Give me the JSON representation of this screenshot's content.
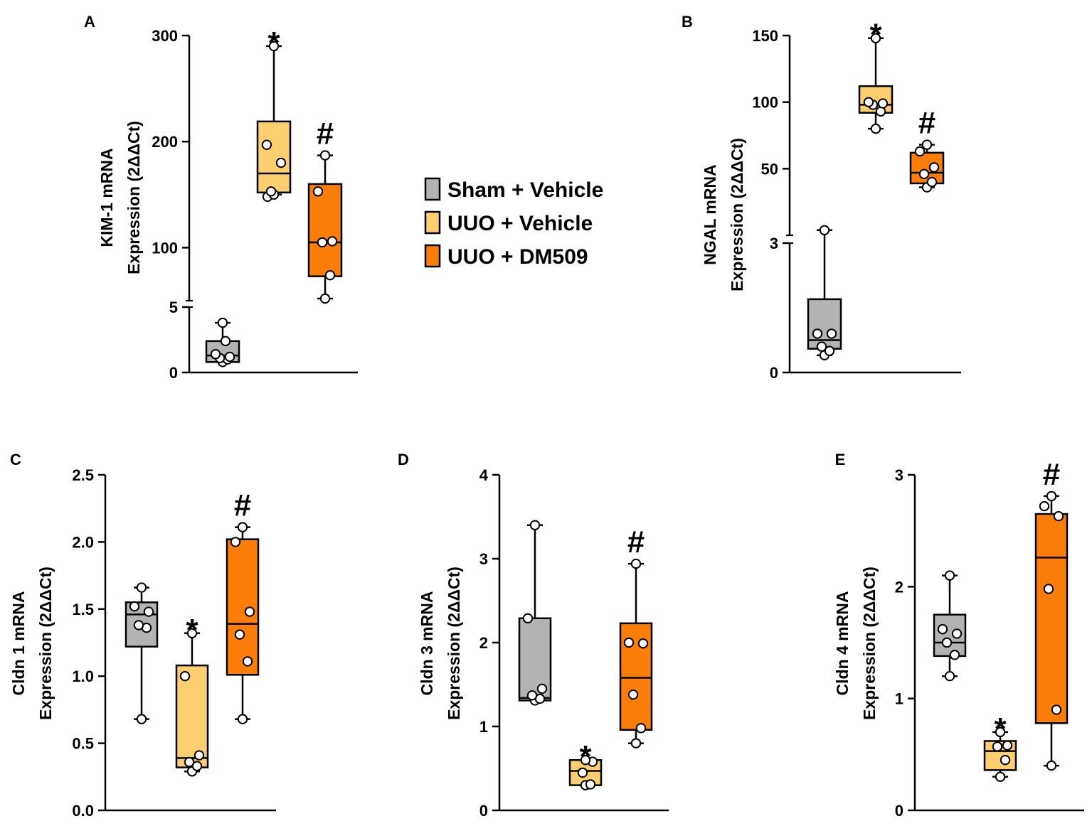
{
  "chart_data": [
    {
      "panel": "A",
      "type": "box",
      "ylabel": [
        "KIM-1 mRNA",
        "Expression (2ΔΔCt)"
      ],
      "yaxis": {
        "broken": true,
        "lower": {
          "range": [
            0,
            5
          ],
          "ticks": [
            "0",
            "5"
          ]
        },
        "upper": {
          "range": [
            50,
            300
          ],
          "ticks": [
            "100",
            "200",
            "300"
          ]
        }
      },
      "groups": [
        {
          "name": "Sham + Vehicle",
          "segment": "lower",
          "whisker": [
            0.8,
            3.8
          ],
          "q1": 0.8,
          "median": 1.3,
          "q3": 2.4,
          "points": [
            0.8,
            1.0,
            1.1,
            1.2,
            1.4,
            2.4,
            3.8
          ],
          "sig": ""
        },
        {
          "name": "UUO + Vehicle",
          "segment": "upper",
          "whisker": [
            150,
            290
          ],
          "q1": 152,
          "median": 170,
          "q3": 219,
          "points": [
            148,
            150,
            153,
            180,
            197,
            290
          ],
          "sig": "*"
        },
        {
          "name": "UUO + DM509",
          "segment": "upper",
          "whisker": [
            52,
            187
          ],
          "q1": 73,
          "median": 105,
          "q3": 160,
          "points": [
            52,
            74,
            105,
            106,
            153,
            187
          ],
          "sig": "#"
        }
      ]
    },
    {
      "panel": "B",
      "type": "box",
      "ylabel": [
        "NGAL mRNA",
        "Expression (2ΔΔCt)"
      ],
      "yaxis": {
        "broken": true,
        "lower": {
          "range": [
            0,
            3
          ],
          "ticks": [
            "0",
            "3"
          ]
        },
        "upper": {
          "range": [
            0,
            150
          ],
          "ticks": [
            "50",
            "100",
            "150"
          ]
        }
      },
      "groups": [
        {
          "name": "Sham + Vehicle",
          "segment": "lower",
          "whisker": [
            0.4,
            3.3
          ],
          "q1": 0.55,
          "median": 0.75,
          "q3": 1.7,
          "points": [
            0.4,
            0.5,
            0.6,
            0.9,
            0.9,
            3.3
          ],
          "sig": ""
        },
        {
          "name": "UUO + Vehicle",
          "segment": "upper",
          "whisker": [
            80,
            148
          ],
          "q1": 92,
          "median": 98,
          "q3": 112,
          "points": [
            80,
            93,
            98,
            99,
            100,
            148
          ],
          "sig": "*"
        },
        {
          "name": "UUO + DM509",
          "segment": "upper",
          "whisker": [
            36,
            68
          ],
          "q1": 39,
          "median": 47,
          "q3": 62,
          "points": [
            36,
            40,
            46,
            51,
            63,
            68
          ],
          "sig": "#"
        }
      ]
    },
    {
      "panel": "C",
      "type": "box",
      "ylabel": [
        "Cldn 1 mRNA",
        "Expression (2ΔΔCt)"
      ],
      "ylim": [
        0,
        2.5
      ],
      "yticks": [
        "0.0",
        "0.5",
        "1.0",
        "1.5",
        "2.0",
        "2.5"
      ],
      "groups": [
        {
          "name": "Sham + Vehicle",
          "whisker": [
            0.68,
            1.66
          ],
          "q1": 1.22,
          "median": 1.46,
          "q3": 1.55,
          "points": [
            0.68,
            1.36,
            1.38,
            1.48,
            1.52,
            1.66
          ],
          "sig": ""
        },
        {
          "name": "UUO + Vehicle",
          "whisker": [
            0.29,
            1.32
          ],
          "q1": 0.32,
          "median": 0.39,
          "q3": 1.08,
          "points": [
            0.29,
            0.33,
            0.36,
            0.41,
            1.0,
            1.32
          ],
          "sig": "*"
        },
        {
          "name": "UUO + DM509",
          "whisker": [
            0.68,
            2.11
          ],
          "q1": 1.01,
          "median": 1.39,
          "q3": 2.02,
          "points": [
            0.68,
            1.11,
            1.31,
            1.48,
            2.0,
            2.11
          ],
          "sig": "#"
        }
      ]
    },
    {
      "panel": "D",
      "type": "box",
      "ylabel": [
        "Cldn 3 mRNA",
        "Expression (2ΔΔCt)"
      ],
      "ylim": [
        0,
        4
      ],
      "yticks": [
        "0",
        "1",
        "2",
        "3",
        "4"
      ],
      "groups": [
        {
          "name": "Sham + Vehicle",
          "whisker": [
            1.31,
            3.4
          ],
          "q1": 1.31,
          "median": 1.34,
          "q3": 2.29,
          "points": [
            1.31,
            1.33,
            1.37,
            1.45,
            2.29,
            3.4
          ],
          "sig": ""
        },
        {
          "name": "UUO + Vehicle",
          "whisker": [
            0.3,
            0.6
          ],
          "q1": 0.3,
          "median": 0.47,
          "q3": 0.6,
          "points": [
            0.3,
            0.31,
            0.45,
            0.58,
            0.6
          ],
          "sig": "*"
        },
        {
          "name": "UUO + DM509",
          "whisker": [
            0.8,
            2.94
          ],
          "q1": 0.96,
          "median": 1.58,
          "q3": 2.23,
          "points": [
            0.8,
            0.98,
            1.38,
            1.99,
            2.0,
            2.94
          ],
          "sig": "#"
        }
      ]
    },
    {
      "panel": "E",
      "type": "box",
      "ylabel": [
        "Cldn 4 mRNA",
        "Expression (2ΔΔCt)"
      ],
      "ylim": [
        0,
        3
      ],
      "yticks": [
        "0",
        "1",
        "2",
        "3"
      ],
      "groups": [
        {
          "name": "Sham + Vehicle",
          "whisker": [
            1.2,
            2.1
          ],
          "q1": 1.38,
          "median": 1.5,
          "q3": 1.75,
          "points": [
            1.2,
            1.39,
            1.5,
            1.58,
            1.62,
            2.1
          ],
          "sig": ""
        },
        {
          "name": "UUO + Vehicle",
          "whisker": [
            0.3,
            0.7
          ],
          "q1": 0.36,
          "median": 0.53,
          "q3": 0.62,
          "points": [
            0.3,
            0.45,
            0.57,
            0.58,
            0.7
          ],
          "sig": "*"
        },
        {
          "name": "UUO + DM509",
          "whisker": [
            0.4,
            2.81
          ],
          "q1": 0.78,
          "median": 2.26,
          "q3": 2.65,
          "points": [
            0.4,
            0.9,
            1.98,
            2.63,
            2.72,
            2.81
          ],
          "sig": "#"
        }
      ]
    }
  ],
  "legend": {
    "entries": [
      {
        "label": "Sham + Vehicle",
        "color": "#b3b3b3"
      },
      {
        "label": "UUO + Vehicle",
        "color": "#fdce6f"
      },
      {
        "label": "UUO + DM509",
        "color": "#fb7e0b"
      }
    ]
  }
}
